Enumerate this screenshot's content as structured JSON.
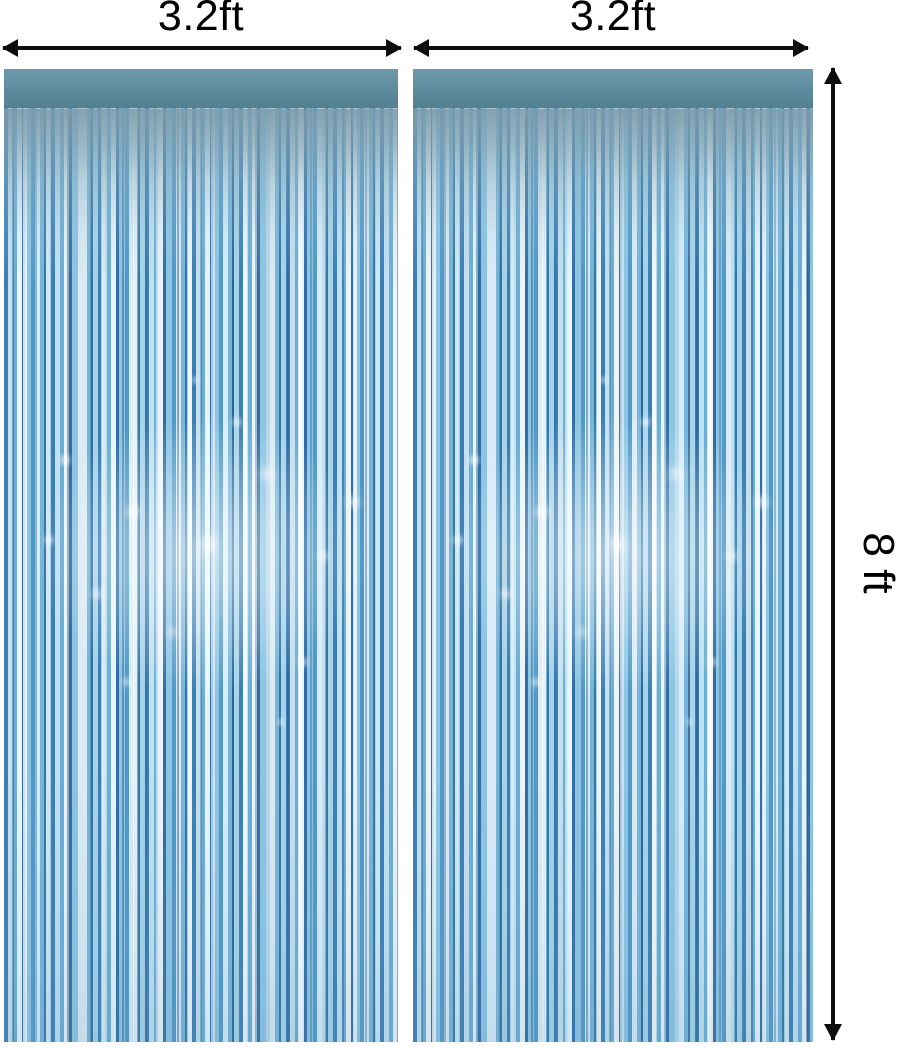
{
  "dimension_figure": {
    "curtain_left": {
      "width_label": "3.2ft"
    },
    "curtain_right": {
      "width_label": "3.2ft"
    },
    "height_label": "8 ft",
    "colors": {
      "annotation": "#0d0d0d",
      "background": "#ffffff",
      "rod_pocket_band": "#5d8b9e",
      "foil_base": "#8fc2de",
      "foil_dark_strand": "#2f6da3",
      "foil_mid_strand": "#5aa0cc",
      "foil_light_strand": "#d9ecf6",
      "shine_highlight": "#ffffff"
    }
  }
}
